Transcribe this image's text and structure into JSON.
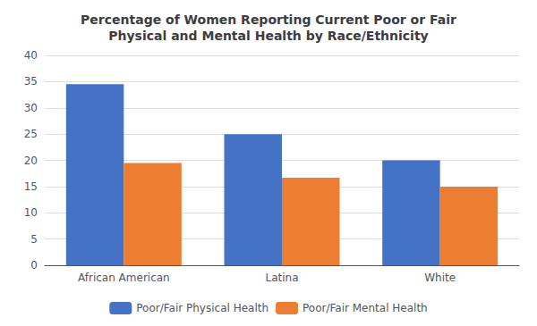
{
  "chart_data": {
    "type": "bar",
    "title": "Percentage of Women Reporting Current Poor or Fair\nPhysical and Mental Health by Race/Ethnicity",
    "categories": [
      "African American",
      "Latina",
      "White"
    ],
    "series": [
      {
        "name": "Poor/Fair Physical Health",
        "color": "#4472C4",
        "values": [
          34.5,
          25.0,
          20.0
        ]
      },
      {
        "name": "Poor/Fair Mental Health",
        "color": "#ED7D31",
        "values": [
          19.5,
          16.7,
          15.0
        ]
      }
    ],
    "ylim": [
      0,
      40
    ],
    "yticks": [
      0,
      5,
      10,
      15,
      20,
      25,
      30,
      35,
      40
    ],
    "grid": true,
    "legend": "bottom"
  }
}
